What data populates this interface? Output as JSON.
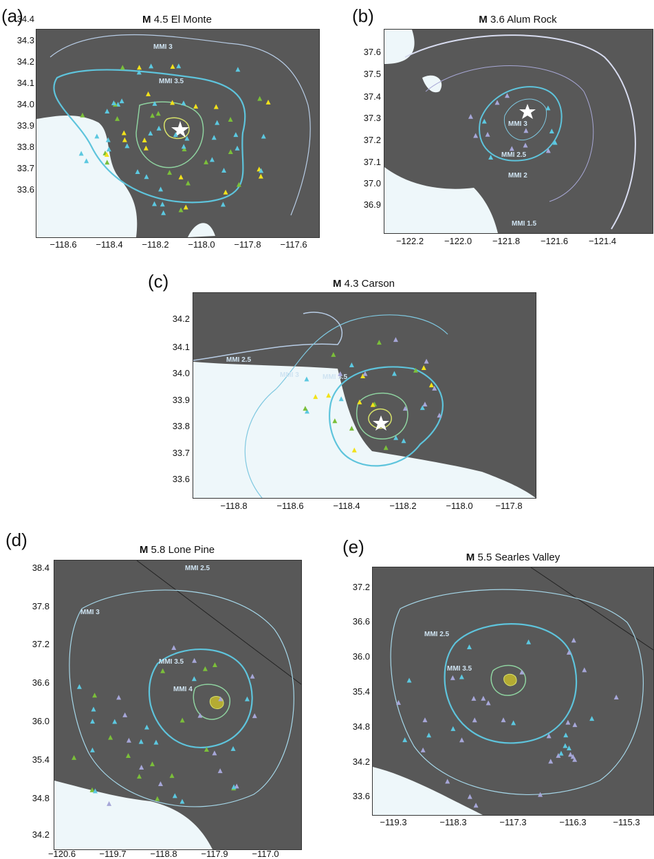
{
  "panels": [
    {
      "id": "a",
      "label": "(a)",
      "mag_prefix": "M",
      "title_rest": "4.5 El Monte",
      "y_ticks": [
        "34.4",
        "34.3",
        "34.2",
        "34.1",
        "34.0",
        "33.9",
        "33.8",
        "33.7",
        "33.6"
      ],
      "x_ticks": [
        "−118.6",
        "−118.4",
        "−118.2",
        "−118.0",
        "−117.8",
        "−117.6"
      ],
      "contours": [
        "MMI 3",
        "MMI 3.5"
      ]
    },
    {
      "id": "b",
      "label": "(b)",
      "mag_prefix": "M",
      "title_rest": "3.6 Alum Rock",
      "y_ticks": [
        "37.6",
        "37.5",
        "37.4",
        "37.3",
        "37.2",
        "37.1",
        "37.0",
        "36.9"
      ],
      "x_ticks": [
        "−122.2",
        "−122.0",
        "−121.8",
        "−121.6",
        "−121.4"
      ],
      "contours": [
        "MMI 3",
        "MMI 2.5",
        "MMI 2",
        "MMI 1.5"
      ]
    },
    {
      "id": "c",
      "label": "(c)",
      "mag_prefix": "M",
      "title_rest": "4.3 Carson",
      "y_ticks": [
        "34.2",
        "34.1",
        "34.0",
        "33.9",
        "33.8",
        "33.7",
        "33.6"
      ],
      "x_ticks": [
        "−118.8",
        "−118.6",
        "−118.4",
        "−118.2",
        "−118.0",
        "−117.8"
      ],
      "contours": [
        "MMI 2.5",
        "MMI 3",
        "MMI 3.5"
      ]
    },
    {
      "id": "d",
      "label": "(d)",
      "mag_prefix": "M",
      "title_rest": "5.8 Lone Pine",
      "y_ticks": [
        "38.4",
        "37.8",
        "37.2",
        "36.6",
        "36.0",
        "35.4",
        "34.8",
        "34.2"
      ],
      "x_ticks": [
        "−120.6",
        "−119.7",
        "−118.8",
        "−117.9",
        "−117.0"
      ],
      "contours": [
        "MMI 2.5",
        "MMI 3",
        "MMI 3.5",
        "MMI 4"
      ]
    },
    {
      "id": "e",
      "label": "(e)",
      "mag_prefix": "M",
      "title_rest": "5.5 Searles Valley",
      "y_ticks": [
        "37.2",
        "36.6",
        "36.0",
        "35.4",
        "34.8",
        "34.2",
        "33.6"
      ],
      "x_ticks": [
        "−119.3",
        "−118.3",
        "−117.3",
        "−116.3",
        "−115.3"
      ],
      "contours": [
        "MMI 2.5",
        "MMI 3.5"
      ]
    }
  ],
  "colors": {
    "land": "#585858",
    "water": "#eef7fa",
    "contour_low": "#b8cde6",
    "contour_mid": "#5ec4dc",
    "contour_high": "#8fd3a0",
    "station_blue": "#5cc8e0",
    "station_purple": "#a6a6d8",
    "station_green": "#7bbf3a",
    "station_yellow": "#f2e21a",
    "epicenter": "#ffffff"
  }
}
